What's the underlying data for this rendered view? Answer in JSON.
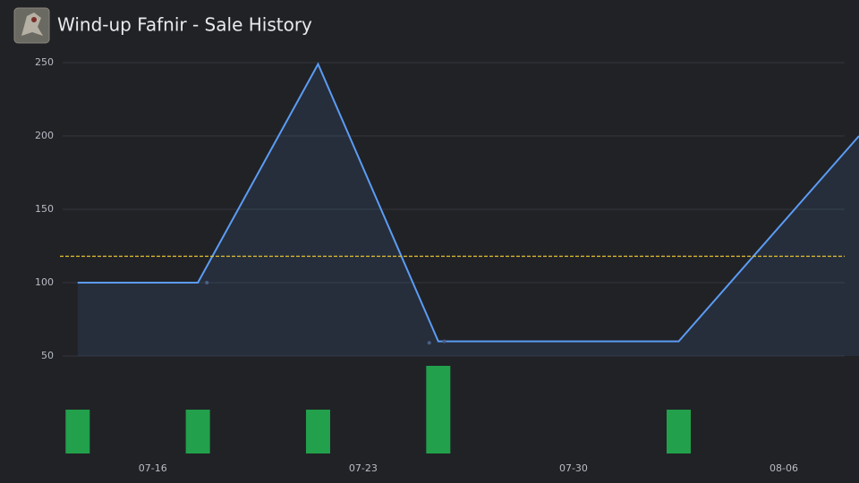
{
  "chart_data": {
    "type": "line",
    "title": "Wind-up Fafnir - Sale History",
    "x": [
      13.5,
      17.5,
      21.5,
      25.5,
      33.5,
      39.5
    ],
    "series": [
      {
        "color": "#5b9cf5",
        "values": [
          100,
          100,
          249,
          60,
          60,
          200
        ]
      }
    ],
    "sales": {
      "color": "#4a5f86",
      "x": [
        17.8,
        25.2,
        25.7
      ],
      "values": [
        100,
        59,
        60
      ]
    },
    "average": {
      "value": 118,
      "color": "#e5c130"
    },
    "volume": {
      "color": "#22a04b",
      "values": [
        1,
        1,
        1,
        2,
        1
      ]
    },
    "xlim": [
      13,
      39.5
    ],
    "xticks": [
      {
        "value": 16,
        "label": "07-16"
      },
      {
        "value": 23,
        "label": "07-23"
      },
      {
        "value": 30,
        "label": "07-30"
      },
      {
        "value": 37,
        "label": "08-06"
      }
    ],
    "ylim": [
      50,
      250
    ],
    "yticks": [
      50,
      100,
      150,
      200,
      250
    ],
    "grid": true
  }
}
